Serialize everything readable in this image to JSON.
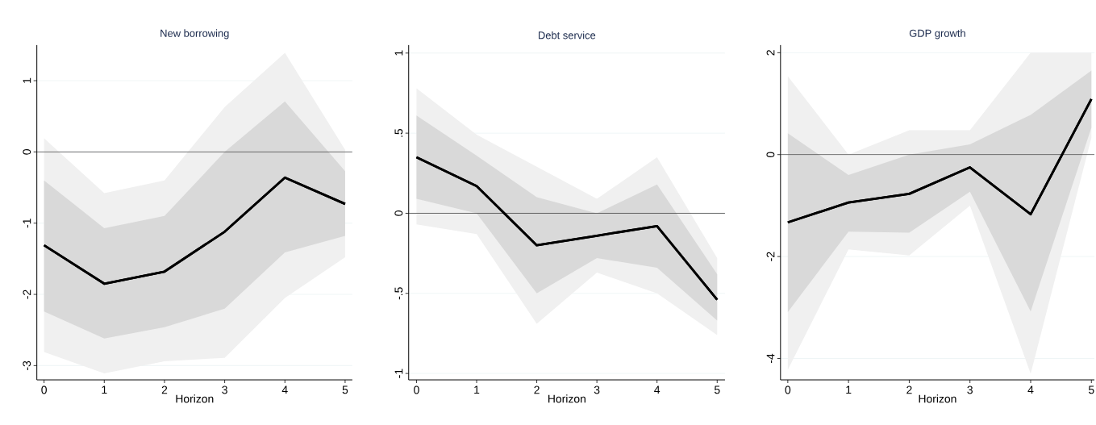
{
  "chart_data": [
    {
      "type": "line",
      "title": "New borrowing",
      "xlabel": "Horizon",
      "x": [
        0,
        1,
        2,
        3,
        4,
        5
      ],
      "xlim": [
        -0.12,
        5.12
      ],
      "xticks": [
        0,
        1,
        2,
        3,
        4,
        5
      ],
      "ylim": [
        -3.2,
        1.5
      ],
      "yticks": [
        -3,
        -2,
        -1,
        0,
        1
      ],
      "grid": "y",
      "ref_lines": [
        {
          "axis": "y",
          "value": 0,
          "color": "#404040"
        }
      ],
      "series": [
        {
          "color": "#000000",
          "values": [
            -1.31,
            -1.85,
            -1.68,
            -1.12,
            -0.36,
            -0.73
          ],
          "lower": [
            -2.81,
            -3.11,
            -2.94,
            -2.89,
            -2.05,
            -1.48
          ],
          "upper": [
            0.19,
            -0.58,
            -0.4,
            0.63,
            1.39,
            0.03
          ]
        },
        {
          "color": "#000000",
          "values": [
            -1.31,
            -1.85,
            -1.68,
            -1.12,
            -0.36,
            -0.73
          ],
          "lower": [
            -2.24,
            -2.62,
            -2.46,
            -2.2,
            -1.41,
            -1.18
          ],
          "upper": [
            -0.4,
            -1.07,
            -0.9,
            0.0,
            0.71,
            -0.27
          ]
        }
      ]
    },
    {
      "type": "line",
      "title": "Debt service",
      "xlabel": "Horizon",
      "x": [
        0,
        1,
        2,
        3,
        4,
        5
      ],
      "xlim": [
        -0.13,
        5.13
      ],
      "xticks": [
        0,
        1,
        2,
        3,
        4,
        5
      ],
      "ylim": [
        -1.04,
        1.05
      ],
      "yticks": [
        -1,
        {
          "value": -0.5,
          "label": "-.5"
        },
        0,
        {
          "value": 0.5,
          "label": ".5"
        },
        1
      ],
      "grid": "y",
      "ref_lines": [
        {
          "axis": "y",
          "value": 0,
          "color": "#404040"
        }
      ],
      "series": [
        {
          "color": "#000000",
          "values": [
            0.35,
            0.17,
            -0.2,
            -0.14,
            -0.08,
            -0.54
          ],
          "lower": [
            -0.07,
            -0.13,
            -0.69,
            -0.37,
            -0.5,
            -0.76
          ],
          "upper": [
            0.78,
            0.49,
            0.29,
            0.09,
            0.35,
            -0.28
          ]
        },
        {
          "color": "#000000",
          "values": [
            0.35,
            0.17,
            -0.2,
            -0.14,
            -0.08,
            -0.54
          ],
          "lower": [
            0.09,
            0.0,
            -0.5,
            -0.28,
            -0.34,
            -0.67
          ],
          "upper": [
            0.61,
            0.36,
            0.1,
            0.0,
            0.18,
            -0.38
          ]
        }
      ]
    },
    {
      "type": "line",
      "title": "GDP growth",
      "xlabel": "Horizon",
      "x": [
        0,
        1,
        2,
        3,
        4,
        5
      ],
      "xlim": [
        -0.12,
        5.05
      ],
      "xticks": [
        0,
        1,
        2,
        3,
        4,
        5
      ],
      "ylim": [
        -4.42,
        2.15
      ],
      "yticks": [
        -4,
        -2,
        0,
        2
      ],
      "grid": "y",
      "ref_lines": [
        {
          "axis": "y",
          "value": 0,
          "color": "#404040"
        }
      ],
      "series": [
        {
          "color": "#000000",
          "values": [
            -1.33,
            -0.94,
            -0.77,
            -0.25,
            -1.17,
            1.09
          ],
          "lower": [
            -4.22,
            -1.86,
            -1.98,
            -1.0,
            -4.3,
            0.33
          ],
          "upper": [
            1.54,
            0.0,
            0.48,
            0.48,
            2.0,
            2.0
          ]
        },
        {
          "color": "#000000",
          "values": [
            -1.33,
            -0.94,
            -0.77,
            -0.25,
            -1.17,
            1.09
          ],
          "lower": [
            -3.09,
            -1.51,
            -1.53,
            -0.73,
            -3.08,
            0.53
          ],
          "upper": [
            0.42,
            -0.4,
            0.0,
            0.2,
            0.78,
            1.65
          ]
        }
      ]
    }
  ]
}
